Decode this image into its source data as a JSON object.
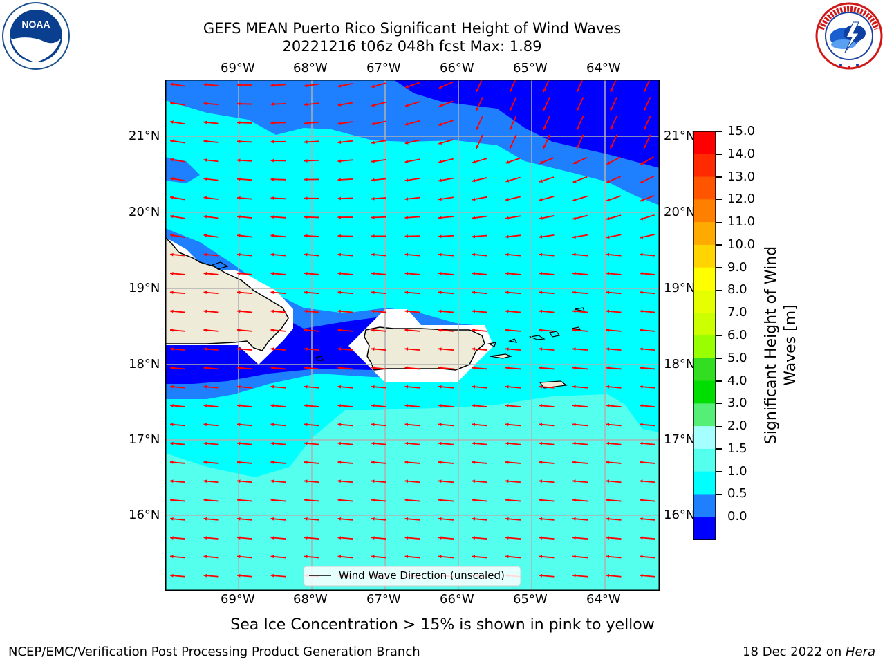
{
  "title": {
    "line1": "GEFS MEAN Puerto Rico Significant Height of Wind Waves",
    "line2": "20221216 t06z 048h fcst   Max: 1.89"
  },
  "logos": {
    "noaa_text": "NOAA",
    "noaa_ring_text": "NATIONAL OCEANIC AND ATMOSPHERIC ADMINISTRATION · U.S. DEPARTMENT OF COMMERCE",
    "nws_ring_text": "NATIONAL WEATHER SERVICE"
  },
  "map": {
    "lon_labels": [
      "69°W",
      "68°W",
      "67°W",
      "66°W",
      "65°W",
      "64°W"
    ],
    "lat_labels": [
      "21°N",
      "20°N",
      "19°N",
      "18°N",
      "17°N",
      "16°N"
    ],
    "legend_label": "Wind Wave Direction (unscaled)",
    "arrow_color": "#ff0000",
    "land_color": "#efebd9",
    "grid_color": "#b0b0b0"
  },
  "colorbar": {
    "label_line1": "Significant Height of Wind",
    "label_line2": "Waves [m]",
    "ticks": [
      "15.0",
      "14.0",
      "13.0",
      "12.0",
      "11.0",
      "10.0",
      "9.0",
      "8.0",
      "7.0",
      "6.0",
      "5.0",
      "4.0",
      "3.0",
      "2.0",
      "1.5",
      "1.0",
      "0.5",
      "0.0"
    ],
    "colors": [
      "#ff0000",
      "#ff2a00",
      "#ff5500",
      "#ff8000",
      "#ffaa00",
      "#ffd400",
      "#ffff00",
      "#e6ff00",
      "#ccff00",
      "#99ff00",
      "#33dd22",
      "#00dd00",
      "#55ee77",
      "#a6ffff",
      "#55ffee",
      "#00ffff",
      "#1e7fff",
      "#0000ff"
    ]
  },
  "caption": "Sea Ice Concentration > 15% is shown in pink to yellow",
  "footer": {
    "left": "NCEP/EMC/Verification Post Processing Product Generation Branch",
    "right_prefix": "18 Dec 2022 on ",
    "right_host": "Hera"
  }
}
